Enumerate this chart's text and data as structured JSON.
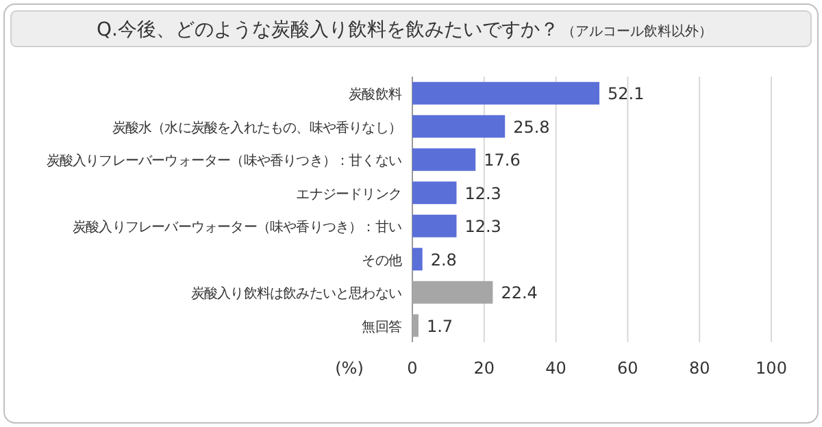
{
  "chart_data": {
    "type": "bar",
    "orientation": "horizontal",
    "title": "Q.今後、どのような炭酸入り飲料を飲みたいですか？",
    "subtitle": "（アルコール飲料以外）",
    "xlabel": "(%)",
    "categories": [
      "炭酸飲料",
      "炭酸水（水に炭酸を入れたもの、味や香りなし）",
      "炭酸入りフレーバーウォーター（味や香りつき）：甘くない",
      "エナジードリンク",
      "炭酸入りフレーバーウォーター（味や香りつき）：甘い",
      "その他",
      "炭酸入り飲料は飲みたいと思わない",
      "無回答"
    ],
    "values": [
      52.1,
      25.8,
      17.6,
      12.3,
      12.3,
      2.8,
      22.4,
      1.7
    ],
    "colors": [
      "#5b6fd8",
      "#5b6fd8",
      "#5b6fd8",
      "#5b6fd8",
      "#5b6fd8",
      "#5b6fd8",
      "#a6a6a6",
      "#a6a6a6"
    ],
    "xlim": [
      0,
      100
    ],
    "xticks": [
      0,
      20,
      40,
      60,
      80,
      100
    ],
    "grid": "x",
    "data_labels": true
  }
}
